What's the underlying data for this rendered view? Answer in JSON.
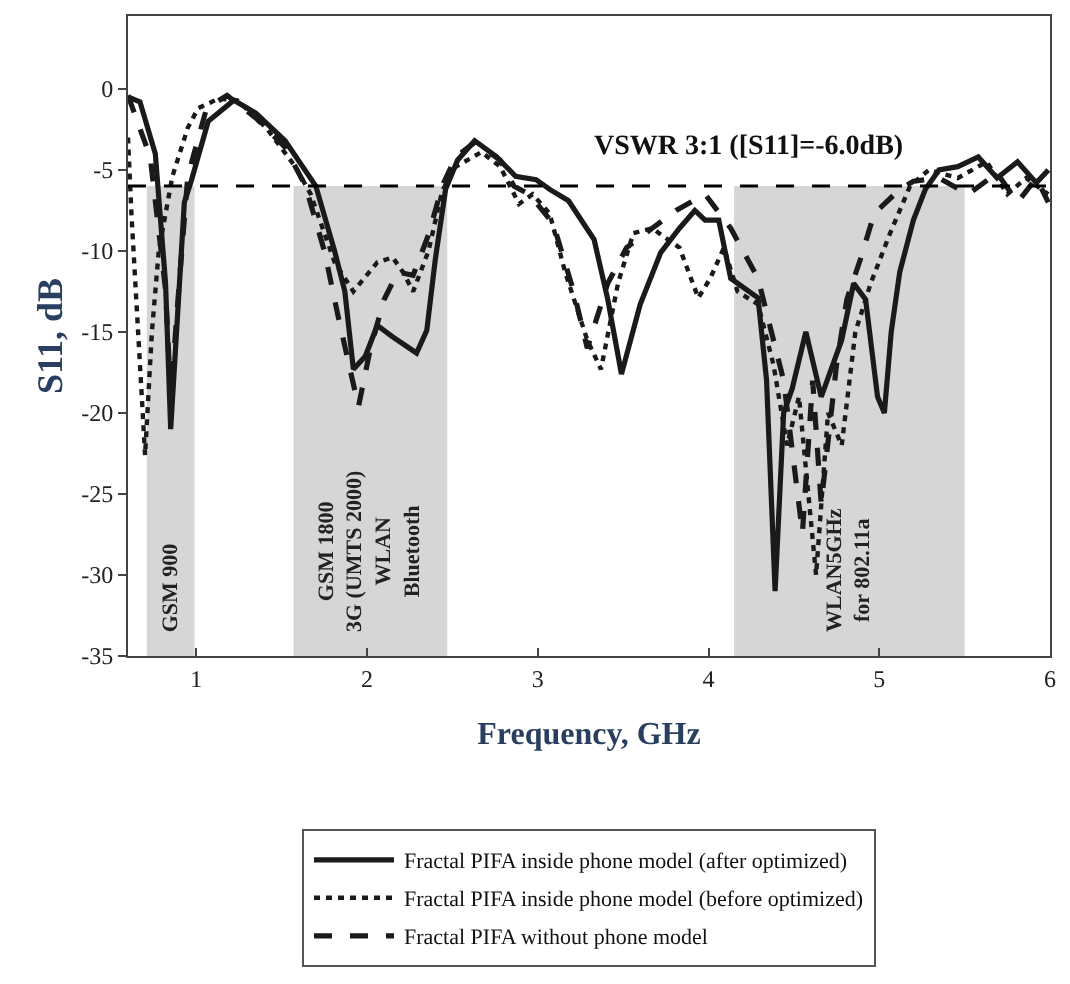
{
  "chart_data": {
    "type": "line",
    "xlabel": "Frequency, GHz",
    "ylabel": "S11, dB",
    "xlim": [
      0.6,
      6.0
    ],
    "ylim": [
      -35,
      4.5
    ],
    "xticks": [
      1,
      2,
      3,
      4,
      5,
      6
    ],
    "yticks": [
      0,
      -5,
      -10,
      -15,
      -20,
      -25,
      -30,
      -35
    ],
    "grid": false,
    "legend": "bottom",
    "marker": "none",
    "ref_lines": [
      {
        "axis": "y",
        "value": -6.0,
        "label": "VSWR 3:1 ([S11]=-6.0dB)",
        "line_style": "dashed",
        "color": "#000000"
      }
    ],
    "bands": [
      {
        "axis": "x",
        "from": 0.71,
        "to": 0.99,
        "label": "GSM 900",
        "color": "#d6d6d6"
      },
      {
        "axis": "x",
        "from": 1.57,
        "to": 2.47,
        "label": "GSM 1800\n3G (UMTS 2000)\nWLAN\nBluetooth",
        "color": "#d6d6d6"
      },
      {
        "axis": "x",
        "from": 4.15,
        "to": 5.5,
        "label": "WLAN5GHz\nfor 802.11a",
        "color": "#d6d6d6"
      }
    ],
    "series": [
      {
        "name": "Fractal PIFA inside phone model (after optimized)",
        "color": "#1a1a1a",
        "line_style": "solid",
        "x": [
          0.6,
          0.67,
          0.76,
          0.82,
          0.85,
          0.89,
          0.93,
          0.97,
          1.07,
          1.22,
          1.35,
          1.52,
          1.7,
          1.81,
          1.87,
          1.92,
          1.99,
          2.06,
          2.15,
          2.29,
          2.35,
          2.4,
          2.46,
          2.53,
          2.63,
          2.76,
          2.87,
          2.99,
          3.07,
          3.18,
          3.33,
          3.41,
          3.49,
          3.6,
          3.72,
          3.83,
          3.92,
          3.98,
          4.06,
          4.13,
          4.29,
          4.34,
          4.39,
          4.44,
          4.49,
          4.57,
          4.66,
          4.78,
          4.85,
          4.92,
          4.99,
          5.03,
          5.07,
          5.12,
          5.2,
          5.27,
          5.35,
          5.46,
          5.58,
          5.69,
          5.81,
          5.92,
          5.99
        ],
        "values": [
          -0.5,
          -0.8,
          -4,
          -12,
          -21,
          -14,
          -7,
          -5.7,
          -2,
          -0.7,
          -1.5,
          -3.2,
          -6,
          -10,
          -12.5,
          -17.3,
          -16.5,
          -14.6,
          -15.3,
          -16.3,
          -14.9,
          -10.5,
          -6.2,
          -4.4,
          -3.2,
          -4.2,
          -5.4,
          -5.6,
          -6.2,
          -6.9,
          -9.3,
          -13,
          -17.6,
          -13.3,
          -10.1,
          -8.6,
          -7.5,
          -8.1,
          -8.1,
          -11.7,
          -12.9,
          -18,
          -31,
          -20,
          -18.5,
          -15,
          -19,
          -15.5,
          -12,
          -13,
          -19,
          -20,
          -15,
          -11.3,
          -8.1,
          -6.2,
          -5,
          -4.8,
          -4.2,
          -5.5,
          -4.5,
          -5.8,
          -5
        ]
      },
      {
        "name": "Fractal PIFA inside phone model (before optimized)",
        "color": "#1a1a1a",
        "line_style": "dotted",
        "x": [
          0.6,
          0.62,
          0.67,
          0.7,
          0.74,
          0.78,
          0.86,
          0.95,
          1.01,
          1.13,
          1.24,
          1.41,
          1.58,
          1.67,
          1.81,
          1.92,
          2.06,
          2.15,
          2.21,
          2.27,
          2.36,
          2.44,
          2.52,
          2.67,
          2.78,
          2.89,
          2.97,
          3.07,
          3.16,
          3.29,
          3.37,
          3.47,
          3.56,
          3.67,
          3.83,
          3.94,
          4.01,
          4.09,
          4.17,
          4.29,
          4.38,
          4.46,
          4.53,
          4.63,
          4.7,
          4.78,
          4.86,
          4.95,
          5.06,
          5.18,
          5.29,
          5.46,
          5.63,
          5.75,
          5.86,
          5.99
        ],
        "values": [
          -3,
          -7.7,
          -17,
          -22.6,
          -15,
          -10,
          -5.4,
          -2.4,
          -1.2,
          -0.6,
          -0.7,
          -2.4,
          -4.8,
          -6.5,
          -10.7,
          -12.5,
          -10.7,
          -10.4,
          -11.3,
          -12.5,
          -10,
          -6.3,
          -4.8,
          -3.9,
          -4.8,
          -7.1,
          -6.5,
          -7.7,
          -11.3,
          -15.5,
          -17.3,
          -12,
          -8.9,
          -8.6,
          -9.8,
          -12.9,
          -11.7,
          -9.8,
          -12.5,
          -13.3,
          -17,
          -22,
          -19,
          -30,
          -20,
          -22,
          -15,
          -12,
          -9,
          -6,
          -5,
          -5.5,
          -4.5,
          -6.5,
          -5.5,
          -6.5
        ]
      },
      {
        "name": "Fractal PIFA without phone model",
        "color": "#1a1a1a",
        "line_style": "dashed",
        "x": [
          0.6,
          0.73,
          0.82,
          0.85,
          0.9,
          0.95,
          1.06,
          1.18,
          1.35,
          1.52,
          1.64,
          1.75,
          1.83,
          1.9,
          1.95,
          2.02,
          2.1,
          2.18,
          2.27,
          2.36,
          2.44,
          2.52,
          2.63,
          2.78,
          2.86,
          2.95,
          3.09,
          3.21,
          3.29,
          3.41,
          3.52,
          3.67,
          3.81,
          3.98,
          4.13,
          4.29,
          4.44,
          4.55,
          4.61,
          4.66,
          4.75,
          4.81,
          4.89,
          4.97,
          5.12,
          5.2,
          5.35,
          5.52,
          5.69,
          5.81,
          5.92,
          5.99
        ],
        "values": [
          -0.4,
          -4.2,
          -12.4,
          -19,
          -12,
          -5.4,
          -1.2,
          -0.4,
          -1.8,
          -3.6,
          -6,
          -10,
          -14,
          -17.3,
          -19.6,
          -16,
          -13,
          -11.3,
          -11.5,
          -9,
          -6,
          -4.2,
          -3.3,
          -4.4,
          -6,
          -6.5,
          -8.3,
          -12.5,
          -16,
          -12,
          -9.8,
          -8.6,
          -7.5,
          -6.5,
          -8.6,
          -11.7,
          -18,
          -27.4,
          -18,
          -25.6,
          -17,
          -13,
          -10.5,
          -7.7,
          -6.2,
          -5.7,
          -5.5,
          -6.5,
          -5.2,
          -7,
          -5.5,
          -7
        ]
      }
    ]
  }
}
